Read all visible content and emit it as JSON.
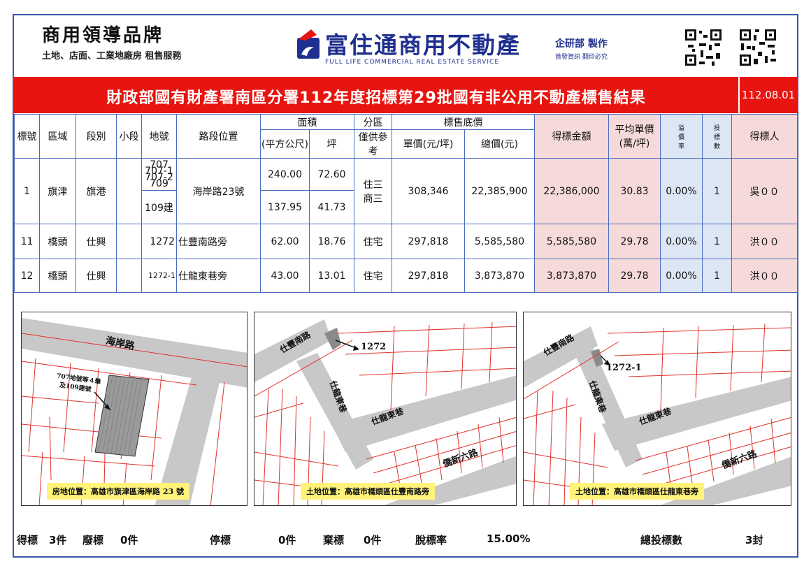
{
  "header": {
    "brand_left_title": "商用領導品牌",
    "brand_left_sub": "土地、店面、工業地廠房 租售服務",
    "brand_center_title": "富住通商用不動產",
    "brand_center_sub": "FULL LIFE COMMERCIAL REAL ESTATE SERVICE",
    "dept": "企研部 製作",
    "dept_sub": "首發資訊 翻印必究"
  },
  "banner": {
    "title": "財政部國有財產署南區分署112年度招標第29批國有非公用不動產標售結果",
    "date": "112.08.01"
  },
  "table": {
    "headers": {
      "lot_no": "標號",
      "district": "區域",
      "section": "段別",
      "subsection": "小段",
      "land_no": "地號",
      "location": "路段位置",
      "area": "面積",
      "area_m2": "(平方公尺)",
      "area_ping": "坪",
      "zone": "分區",
      "zone_note": "僅供參考",
      "base_price": "標售底價",
      "unit_price": "單價(元/坪)",
      "total_price": "總價(元)",
      "winning_bid": "得標金額",
      "avg_unit_a": "平均單價",
      "avg_unit_b": "(萬/坪)",
      "premium_a": "溢",
      "premium_b": "價",
      "premium_c": "率",
      "bids_a": "投",
      "bids_b": "標",
      "bids_c": "數",
      "winner": "得標人"
    },
    "row1": {
      "no": "1",
      "district": "旗津",
      "section": "旗港",
      "lot_a": "707",
      "lot_b": "707-1",
      "lot_c": "707-2",
      "lot_d": "709",
      "lot_build": "109建",
      "location": "海岸路23號",
      "m2_a": "240.00",
      "ping_a": "72.60",
      "m2_b": "137.95",
      "ping_b": "41.73",
      "zone_a": "住三",
      "zone_b": "商三",
      "unit_price": "308,346",
      "total_price": "22,385,900",
      "winning_bid": "22,386,000",
      "avg_unit": "30.83",
      "premium": "0.00%",
      "bids": "1",
      "winner": "吳００"
    },
    "row11": {
      "no": "11",
      "district": "橋頭",
      "section": "仕興",
      "lot": "1272",
      "location": "仕豐南路旁",
      "m2": "62.00",
      "ping": "18.76",
      "zone": "住宅",
      "unit_price": "297,818",
      "total_price": "5,585,580",
      "winning_bid": "5,585,580",
      "avg_unit": "29.78",
      "premium": "0.00%",
      "bids": "1",
      "winner": "洪００"
    },
    "row12": {
      "no": "12",
      "district": "橋頭",
      "section": "仕興",
      "lot": "1272-1",
      "location": "仕龍東巷旁",
      "m2": "43.00",
      "ping": "13.01",
      "zone": "住宅",
      "unit_price": "297,818",
      "total_price": "3,873,870",
      "winning_bid": "3,873,870",
      "avg_unit": "29.78",
      "premium": "0.00%",
      "bids": "1",
      "winner": "洪００"
    }
  },
  "maps": {
    "map1": {
      "road": "海岸路",
      "annotation_a": "707地號等４筆",
      "annotation_b": "及109建號",
      "caption": "房地位置：高雄市旗津區海岸路 23 號"
    },
    "map2": {
      "road_a": "仕豐南路",
      "road_b": "仕龍東巷",
      "road_c": "仕龍東巷",
      "road_d": "僑新六路",
      "lot": "1272",
      "caption": "土地位置：高雄市橋頭區仕豐南路旁"
    },
    "map3": {
      "road_a": "仕豐南路",
      "road_b": "仕龍東巷",
      "road_c": "仕龍東巷",
      "road_d": "僑新六路",
      "lot": "1272-1",
      "caption": "土地位置：高雄市橋頭區仕龍東巷旁"
    }
  },
  "footer": {
    "won_label": "得標",
    "won_value": "3件",
    "void_label": "廢標",
    "void_value": "0件",
    "stopped_label": "停標",
    "stopped_value": "0件",
    "abandoned_label": "棄標",
    "abandoned_value": "0件",
    "unsold_rate_label": "脫標率",
    "unsold_rate_value": "15.00%",
    "total_bids_label": "總投標數",
    "total_bids_value": "3封"
  },
  "colors": {
    "banner": "#e8140f",
    "brand_blue": "#1f2f8f",
    "pink_cell": "#f6d9d9",
    "blue_cell": "#dce6f4",
    "caption_bg": "#fff37a"
  }
}
